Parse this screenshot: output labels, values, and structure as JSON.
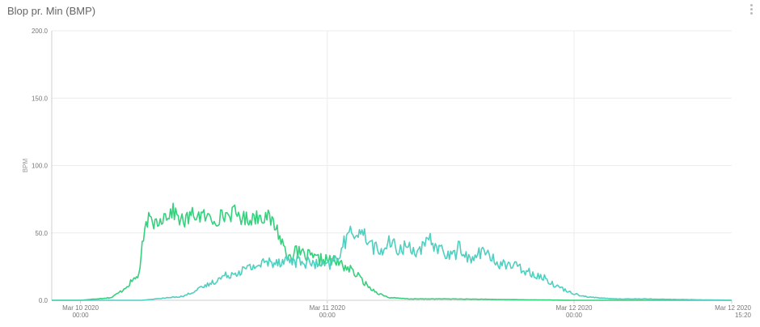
{
  "panel": {
    "title": "Blop pr. Min (BMP)"
  },
  "icons": {
    "menu": "vertical-ellipsis-icon"
  },
  "chart_data": {
    "type": "line",
    "title": "Blop pr. Min (BMP)",
    "xlabel": "",
    "ylabel": "BPM",
    "ylim": [
      0,
      200
    ],
    "xlim": [
      "2020-03-09 21:12",
      "2020-03-12 15:20"
    ],
    "grid": true,
    "legend": "none",
    "yticks": [
      "200.0",
      "150.0",
      "100.0",
      "50.0",
      "0.0"
    ],
    "xticks": [
      {
        "date": "Mar 10 2020",
        "time": "00:00",
        "at": "2020-03-10 00:00"
      },
      {
        "date": "Mar 11 2020",
        "time": "00:00",
        "at": "2020-03-11 00:00"
      },
      {
        "date": "Mar 12 2020",
        "time": "00:00",
        "at": "2020-03-12 00:00"
      },
      {
        "date": "Mar 12 2020",
        "time": "15:20",
        "at": "2020-03-12 15:20"
      }
    ],
    "series": [
      {
        "color": "#36d07d",
        "x": [
          "2020-03-09 21:12",
          "2020-03-10 00:00",
          "2020-03-10 03:00",
          "2020-03-10 04:00",
          "2020-03-10 05:00",
          "2020-03-10 05:40",
          "2020-03-10 06:00",
          "2020-03-10 06:30",
          "2020-03-10 07:00",
          "2020-03-10 08:00",
          "2020-03-10 09:00",
          "2020-03-10 10:00",
          "2020-03-10 11:00",
          "2020-03-10 12:00",
          "2020-03-10 13:00",
          "2020-03-10 14:00",
          "2020-03-10 15:00",
          "2020-03-10 16:00",
          "2020-03-10 17:00",
          "2020-03-10 18:00",
          "2020-03-10 19:00",
          "2020-03-10 20:00",
          "2020-03-10 21:00",
          "2020-03-10 22:00",
          "2020-03-10 23:00",
          "2020-03-11 00:00",
          "2020-03-11 01:00",
          "2020-03-11 02:00",
          "2020-03-11 03:00",
          "2020-03-11 04:00",
          "2020-03-11 05:00",
          "2020-03-11 06:00",
          "2020-03-11 08:00",
          "2020-03-11 12:00",
          "2020-03-12 00:00",
          "2020-03-12 15:20"
        ],
        "y": [
          0,
          0,
          2,
          7,
          14,
          19,
          38,
          60,
          57,
          62,
          66,
          58,
          64,
          62,
          60,
          63,
          65,
          60,
          62,
          63,
          55,
          35,
          35,
          33,
          30,
          30,
          28,
          24,
          18,
          10,
          5,
          2,
          1,
          1,
          0,
          0
        ]
      },
      {
        "color": "#50cfc0",
        "x": [
          "2020-03-09 21:12",
          "2020-03-10 06:00",
          "2020-03-10 10:00",
          "2020-03-10 12:00",
          "2020-03-10 14:00",
          "2020-03-10 16:00",
          "2020-03-10 18:00",
          "2020-03-10 20:00",
          "2020-03-10 22:00",
          "2020-03-11 00:00",
          "2020-03-11 01:00",
          "2020-03-11 02:00",
          "2020-03-11 03:00",
          "2020-03-11 04:00",
          "2020-03-11 05:00",
          "2020-03-11 06:00",
          "2020-03-11 07:00",
          "2020-03-11 08:00",
          "2020-03-11 09:00",
          "2020-03-11 10:00",
          "2020-03-11 11:00",
          "2020-03-11 12:00",
          "2020-03-11 13:00",
          "2020-03-11 14:00",
          "2020-03-11 15:00",
          "2020-03-11 16:00",
          "2020-03-11 17:00",
          "2020-03-11 18:00",
          "2020-03-11 19:00",
          "2020-03-11 20:00",
          "2020-03-11 21:00",
          "2020-03-11 22:00",
          "2020-03-11 23:00",
          "2020-03-12 00:00",
          "2020-03-12 01:00",
          "2020-03-12 02:00",
          "2020-03-12 04:00",
          "2020-03-12 07:00",
          "2020-03-12 15:20"
        ],
        "y": [
          0,
          0,
          3,
          10,
          18,
          23,
          28,
          30,
          28,
          25,
          32,
          48,
          52,
          45,
          35,
          42,
          38,
          40,
          36,
          44,
          38,
          32,
          40,
          28,
          38,
          30,
          27,
          26,
          23,
          20,
          17,
          12,
          8,
          5,
          3,
          2,
          1,
          1,
          0
        ]
      }
    ]
  }
}
